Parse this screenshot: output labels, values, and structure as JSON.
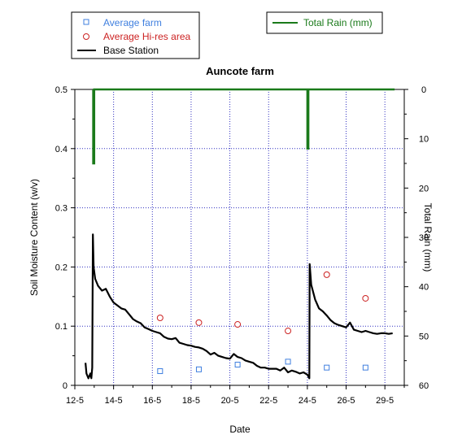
{
  "chart_data": {
    "type": "line",
    "title": "Auncote farm",
    "xlabel": "Date",
    "ylabel": "Soil Moisture Content (w/v)",
    "y2label": "Total Rain (mm)",
    "xlim": [
      12,
      29
    ],
    "ylim": [
      0,
      0.5
    ],
    "y2lim": [
      60,
      0
    ],
    "y2_inverted": true,
    "grid": true,
    "x_ticks": [
      12,
      14,
      16,
      18,
      20,
      22,
      24,
      26,
      28
    ],
    "x_tick_labels": [
      "12-5",
      "14-5",
      "16-5",
      "18-5",
      "20-5",
      "22-5",
      "24-5",
      "26-5",
      "29-5"
    ],
    "y_ticks": [
      0,
      0.1,
      0.2,
      0.3,
      0.4,
      0.5
    ],
    "y_tick_labels": [
      "0",
      "0.1",
      "0.2",
      "0.3",
      "0.4",
      "0.5"
    ],
    "y2_ticks": [
      0,
      10,
      20,
      30,
      40,
      50,
      60
    ],
    "y2_tick_labels": [
      "0",
      "10",
      "20",
      "30",
      "40",
      "50",
      "60"
    ],
    "colors": {
      "average_farm": "#3f7fdf",
      "average_hires": "#cc2222",
      "base_station": "#000000",
      "total_rain": "#1a7a1a",
      "grid": "#3030c0"
    },
    "series": [
      {
        "name": "Average farm",
        "type": "scatter",
        "marker": "square",
        "points": [
          [
            16.4,
            0.024
          ],
          [
            18.4,
            0.027
          ],
          [
            20.4,
            0.035
          ],
          [
            23.0,
            0.04
          ],
          [
            25.0,
            0.03
          ],
          [
            27.0,
            0.03
          ]
        ]
      },
      {
        "name": "Average Hi-res area",
        "type": "scatter",
        "marker": "circle",
        "points": [
          [
            16.4,
            0.114
          ],
          [
            18.4,
            0.106
          ],
          [
            20.4,
            0.103
          ],
          [
            23.0,
            0.092
          ],
          [
            25.0,
            0.187
          ],
          [
            27.0,
            0.147
          ]
        ]
      },
      {
        "name": "Base Station",
        "type": "line",
        "points": [
          [
            12.55,
            0.038
          ],
          [
            12.6,
            0.02
          ],
          [
            12.7,
            0.012
          ],
          [
            12.8,
            0.02
          ],
          [
            12.85,
            0.012
          ],
          [
            12.9,
            0.03
          ],
          [
            12.93,
            0.255
          ],
          [
            12.97,
            0.2
          ],
          [
            13.05,
            0.18
          ],
          [
            13.2,
            0.168
          ],
          [
            13.4,
            0.16
          ],
          [
            13.6,
            0.163
          ],
          [
            13.8,
            0.15
          ],
          [
            14.0,
            0.14
          ],
          [
            14.2,
            0.135
          ],
          [
            14.4,
            0.13
          ],
          [
            14.6,
            0.128
          ],
          [
            14.8,
            0.12
          ],
          [
            15.0,
            0.112
          ],
          [
            15.2,
            0.108
          ],
          [
            15.4,
            0.105
          ],
          [
            15.6,
            0.098
          ],
          [
            15.8,
            0.095
          ],
          [
            16.0,
            0.092
          ],
          [
            16.2,
            0.09
          ],
          [
            16.4,
            0.088
          ],
          [
            16.6,
            0.082
          ],
          [
            16.8,
            0.079
          ],
          [
            17.0,
            0.078
          ],
          [
            17.2,
            0.08
          ],
          [
            17.4,
            0.072
          ],
          [
            17.6,
            0.07
          ],
          [
            17.8,
            0.068
          ],
          [
            18.0,
            0.067
          ],
          [
            18.2,
            0.065
          ],
          [
            18.4,
            0.064
          ],
          [
            18.6,
            0.062
          ],
          [
            18.8,
            0.058
          ],
          [
            19.0,
            0.052
          ],
          [
            19.2,
            0.055
          ],
          [
            19.4,
            0.05
          ],
          [
            19.6,
            0.048
          ],
          [
            19.8,
            0.046
          ],
          [
            20.0,
            0.045
          ],
          [
            20.2,
            0.053
          ],
          [
            20.4,
            0.048
          ],
          [
            20.6,
            0.046
          ],
          [
            20.8,
            0.042
          ],
          [
            21.0,
            0.04
          ],
          [
            21.2,
            0.038
          ],
          [
            21.4,
            0.033
          ],
          [
            21.6,
            0.03
          ],
          [
            21.8,
            0.03
          ],
          [
            22.0,
            0.028
          ],
          [
            22.2,
            0.028
          ],
          [
            22.4,
            0.028
          ],
          [
            22.6,
            0.025
          ],
          [
            22.8,
            0.03
          ],
          [
            23.0,
            0.022
          ],
          [
            23.2,
            0.025
          ],
          [
            23.4,
            0.023
          ],
          [
            23.6,
            0.02
          ],
          [
            23.8,
            0.022
          ],
          [
            24.0,
            0.018
          ],
          [
            24.1,
            0.012
          ],
          [
            24.12,
            0.205
          ],
          [
            24.2,
            0.17
          ],
          [
            24.4,
            0.145
          ],
          [
            24.6,
            0.13
          ],
          [
            24.8,
            0.125
          ],
          [
            25.0,
            0.118
          ],
          [
            25.2,
            0.11
          ],
          [
            25.4,
            0.105
          ],
          [
            25.6,
            0.102
          ],
          [
            25.8,
            0.1
          ],
          [
            26.0,
            0.098
          ],
          [
            26.2,
            0.106
          ],
          [
            26.4,
            0.094
          ],
          [
            26.6,
            0.092
          ],
          [
            26.8,
            0.09
          ],
          [
            27.0,
            0.092
          ],
          [
            27.2,
            0.09
          ],
          [
            27.4,
            0.088
          ],
          [
            27.6,
            0.087
          ],
          [
            27.8,
            0.088
          ],
          [
            28.0,
            0.088
          ],
          [
            28.2,
            0.087
          ],
          [
            28.4,
            0.088
          ]
        ]
      },
      {
        "name": "Total Rain (mm)",
        "type": "line",
        "axis": "right",
        "points": [
          [
            12.95,
            0
          ],
          [
            12.95,
            15
          ],
          [
            13.0,
            15
          ],
          [
            13.0,
            0
          ],
          [
            24.0,
            0
          ],
          [
            24.0,
            12
          ],
          [
            24.05,
            12
          ],
          [
            24.05,
            0
          ],
          [
            28.5,
            0
          ]
        ]
      }
    ]
  }
}
